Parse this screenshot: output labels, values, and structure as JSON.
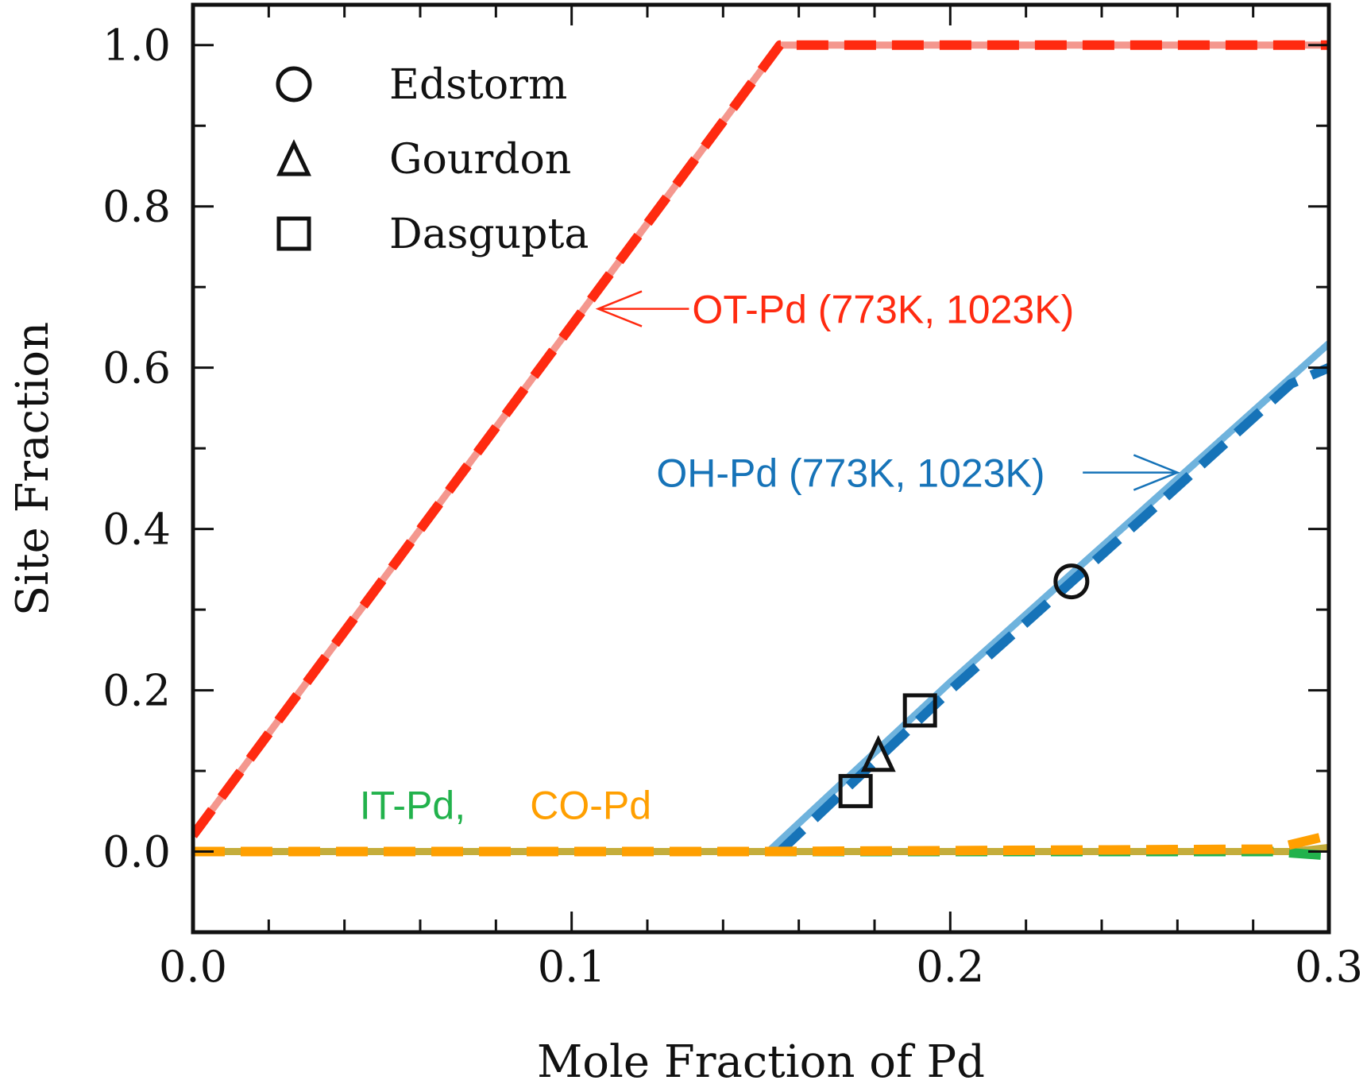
{
  "chart_data": {
    "type": "line",
    "xlabel": "Mole Fraction of Pd",
    "ylabel": "Site Fraction",
    "xlim": [
      0.0,
      0.3
    ],
    "ylim": [
      -0.1,
      1.05
    ],
    "x_ticks": [
      "0.0",
      "0.1",
      "0.2",
      "0.3"
    ],
    "y_ticks": [
      "0.0",
      "0.2",
      "0.4",
      "0.6",
      "0.8",
      "1.0"
    ],
    "grid": false,
    "legend_placement": "top-left",
    "series": [
      {
        "id": "ot-773",
        "color": "#f4978e",
        "style": "solid",
        "x": [
          0.0,
          0.155,
          0.3
        ],
        "y": [
          0.02,
          1.0,
          1.0
        ]
      },
      {
        "id": "ot-1023",
        "color": "#ff2a10",
        "style": "dashed",
        "x": [
          0.0,
          0.155,
          0.3
        ],
        "y": [
          0.02,
          1.0,
          1.0
        ]
      },
      {
        "id": "oh-773",
        "color": "#6fb3dd",
        "style": "solid",
        "x": [
          0.152,
          0.2,
          0.25,
          0.3
        ],
        "y": [
          0.0,
          0.21,
          0.42,
          0.63
        ]
      },
      {
        "id": "oh-1023",
        "color": "#1673b8",
        "style": "dashed",
        "x": [
          0.155,
          0.2,
          0.25,
          0.29,
          0.3
        ],
        "y": [
          0.0,
          0.2,
          0.41,
          0.58,
          0.6
        ]
      },
      {
        "id": "it-co-773",
        "color": "#c4ad3c",
        "style": "solid",
        "x": [
          0.0,
          0.15,
          0.29,
          0.3
        ],
        "y": [
          0.0,
          0.0,
          0.0,
          0.005
        ]
      },
      {
        "id": "it-1023",
        "color": "#22b24c",
        "style": "dashed",
        "x": [
          0.0,
          0.15,
          0.285,
          0.3
        ],
        "y": [
          0.0,
          0.0,
          0.0,
          -0.005
        ]
      },
      {
        "id": "co-1023",
        "color": "#ff9f00",
        "style": "dashed",
        "x": [
          0.0,
          0.15,
          0.285,
          0.3
        ],
        "y": [
          0.0,
          0.0,
          0.003,
          0.02
        ]
      }
    ],
    "points": [
      {
        "source": "Edstorm",
        "marker": "circle",
        "x": 0.232,
        "y": 0.335
      },
      {
        "source": "Gourdon",
        "marker": "triangle",
        "x": 0.181,
        "y": 0.12
      },
      {
        "source": "Dasgupta",
        "marker": "square",
        "x": 0.175,
        "y": 0.075
      },
      {
        "source": "Dasgupta",
        "marker": "square",
        "x": 0.192,
        "y": 0.175
      }
    ],
    "legend": [
      {
        "label": "Edstorm",
        "marker": "circle"
      },
      {
        "label": "Gourdon",
        "marker": "triangle"
      },
      {
        "label": "Dasgupta",
        "marker": "square"
      }
    ],
    "annotations": {
      "ot": {
        "text": "OT-Pd (773K, 1023K)",
        "color": "#ff2a10",
        "x": 0.131,
        "y": 0.673,
        "arrow_from_x": 0.131,
        "arrow_to_x": 0.107,
        "arrow_y": 0.673
      },
      "oh": {
        "text": "OH-Pd (773K, 1023K)",
        "color": "#1673b8",
        "x": 0.225,
        "y": 0.47,
        "arrow_from_x": 0.235,
        "arrow_to_x": 0.26,
        "arrow_y": 0.47
      },
      "it": {
        "text": "IT-Pd,",
        "color": "#22b24c",
        "x": 0.044,
        "y": 0.058
      },
      "co": {
        "text": "CO-Pd",
        "color": "#ff9f00",
        "x": 0.089,
        "y": 0.058
      }
    }
  }
}
